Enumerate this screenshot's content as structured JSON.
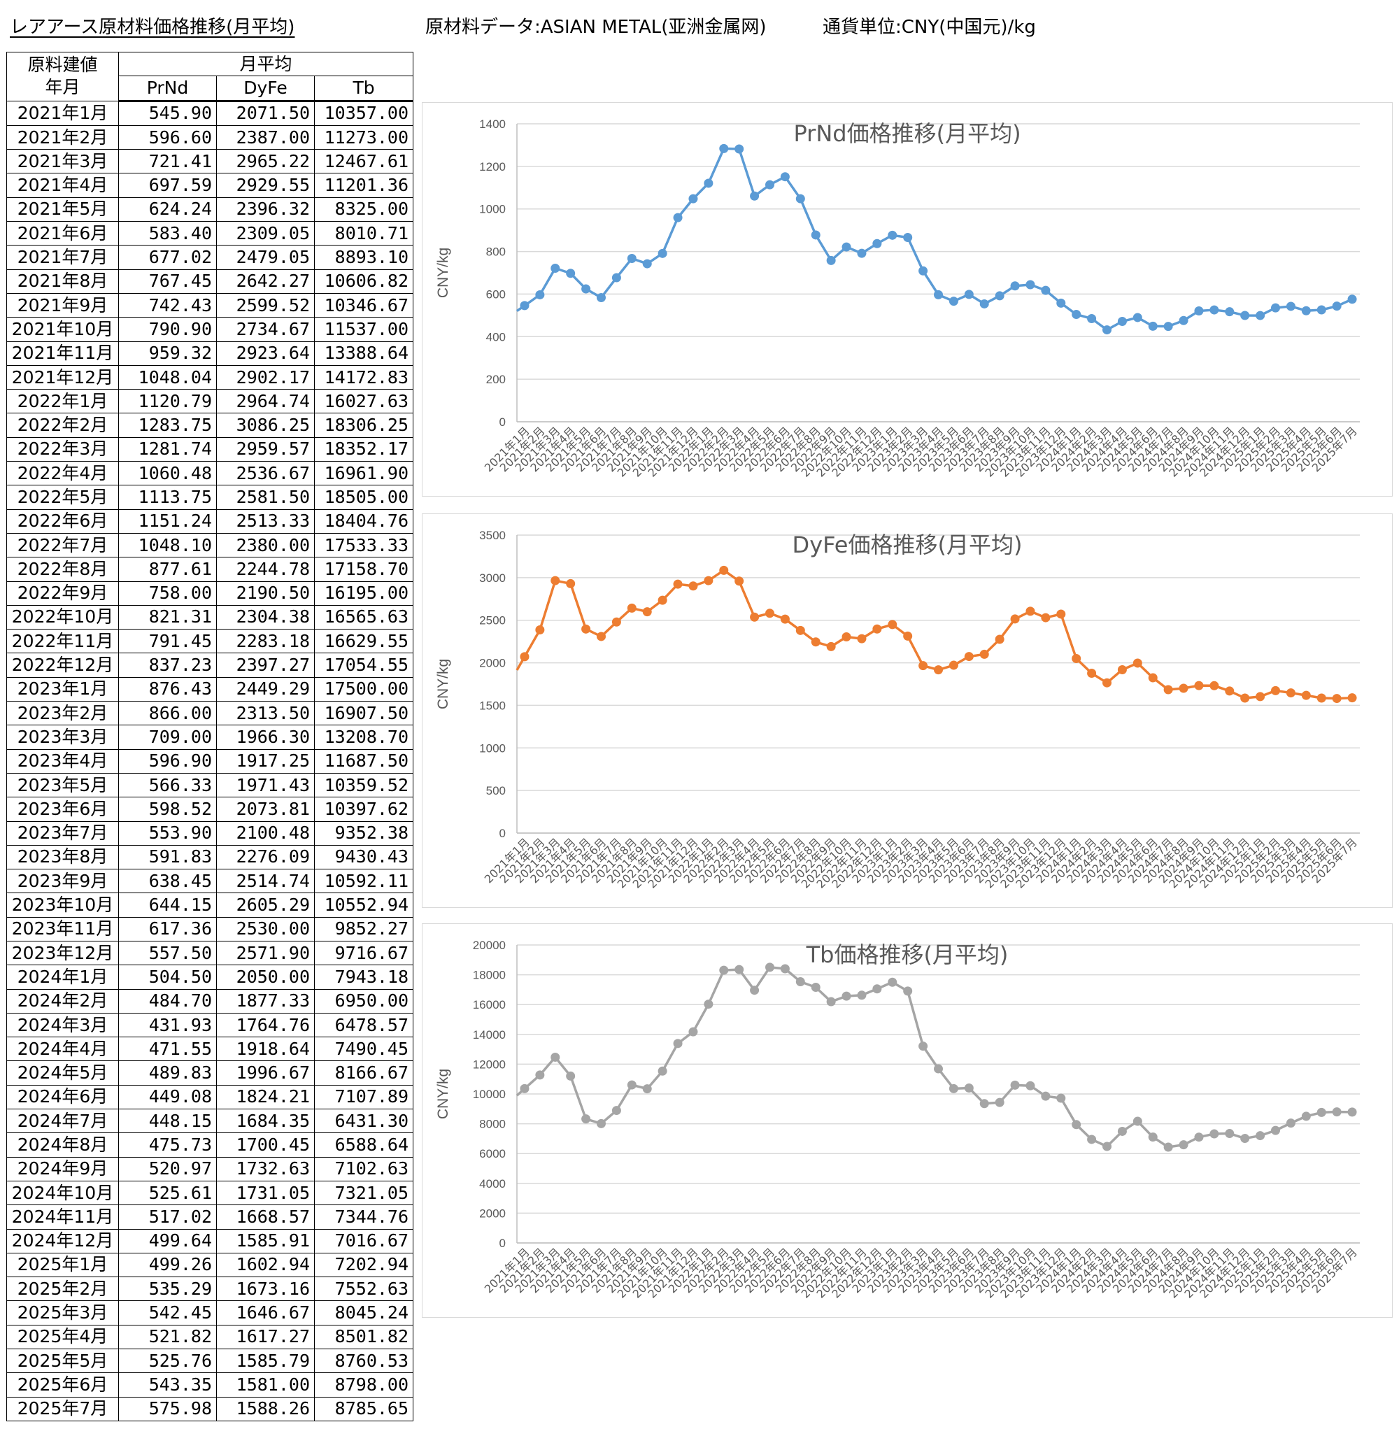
{
  "header": {
    "title": "レアアース原材料価格推移(月平均)",
    "source": "原材料データ:ASIAN METAL(亚洲金属网)",
    "currency": "通貨単位:CNY(中国元)/kg"
  },
  "table": {
    "corner_line1": "原料建値",
    "corner_line2": "年月",
    "group_header": "月平均",
    "columns": [
      "PrNd",
      "DyFe",
      "Tb"
    ],
    "rows": [
      [
        "2021年1月",
        "545.90",
        "2071.50",
        "10357.00"
      ],
      [
        "2021年2月",
        "596.60",
        "2387.00",
        "11273.00"
      ],
      [
        "2021年3月",
        "721.41",
        "2965.22",
        "12467.61"
      ],
      [
        "2021年4月",
        "697.59",
        "2929.55",
        "11201.36"
      ],
      [
        "2021年5月",
        "624.24",
        "2396.32",
        "8325.00"
      ],
      [
        "2021年6月",
        "583.40",
        "2309.05",
        "8010.71"
      ],
      [
        "2021年7月",
        "677.02",
        "2479.05",
        "8893.10"
      ],
      [
        "2021年8月",
        "767.45",
        "2642.27",
        "10606.82"
      ],
      [
        "2021年9月",
        "742.43",
        "2599.52",
        "10346.67"
      ],
      [
        "2021年10月",
        "790.90",
        "2734.67",
        "11537.00"
      ],
      [
        "2021年11月",
        "959.32",
        "2923.64",
        "13388.64"
      ],
      [
        "2021年12月",
        "1048.04",
        "2902.17",
        "14172.83"
      ],
      [
        "2022年1月",
        "1120.79",
        "2964.74",
        "16027.63"
      ],
      [
        "2022年2月",
        "1283.75",
        "3086.25",
        "18306.25"
      ],
      [
        "2022年3月",
        "1281.74",
        "2959.57",
        "18352.17"
      ],
      [
        "2022年4月",
        "1060.48",
        "2536.67",
        "16961.90"
      ],
      [
        "2022年5月",
        "1113.75",
        "2581.50",
        "18505.00"
      ],
      [
        "2022年6月",
        "1151.24",
        "2513.33",
        "18404.76"
      ],
      [
        "2022年7月",
        "1048.10",
        "2380.00",
        "17533.33"
      ],
      [
        "2022年8月",
        "877.61",
        "2244.78",
        "17158.70"
      ],
      [
        "2022年9月",
        "758.00",
        "2190.50",
        "16195.00"
      ],
      [
        "2022年10月",
        "821.31",
        "2304.38",
        "16565.63"
      ],
      [
        "2022年11月",
        "791.45",
        "2283.18",
        "16629.55"
      ],
      [
        "2022年12月",
        "837.23",
        "2397.27",
        "17054.55"
      ],
      [
        "2023年1月",
        "876.43",
        "2449.29",
        "17500.00"
      ],
      [
        "2023年2月",
        "866.00",
        "2313.50",
        "16907.50"
      ],
      [
        "2023年3月",
        "709.00",
        "1966.30",
        "13208.70"
      ],
      [
        "2023年4月",
        "596.90",
        "1917.25",
        "11687.50"
      ],
      [
        "2023年5月",
        "566.33",
        "1971.43",
        "10359.52"
      ],
      [
        "2023年6月",
        "598.52",
        "2073.81",
        "10397.62"
      ],
      [
        "2023年7月",
        "553.90",
        "2100.48",
        "9352.38"
      ],
      [
        "2023年8月",
        "591.83",
        "2276.09",
        "9430.43"
      ],
      [
        "2023年9月",
        "638.45",
        "2514.74",
        "10592.11"
      ],
      [
        "2023年10月",
        "644.15",
        "2605.29",
        "10552.94"
      ],
      [
        "2023年11月",
        "617.36",
        "2530.00",
        "9852.27"
      ],
      [
        "2023年12月",
        "557.50",
        "2571.90",
        "9716.67"
      ],
      [
        "2024年1月",
        "504.50",
        "2050.00",
        "7943.18"
      ],
      [
        "2024年2月",
        "484.70",
        "1877.33",
        "6950.00"
      ],
      [
        "2024年3月",
        "431.93",
        "1764.76",
        "6478.57"
      ],
      [
        "2024年4月",
        "471.55",
        "1918.64",
        "7490.45"
      ],
      [
        "2024年5月",
        "489.83",
        "1996.67",
        "8166.67"
      ],
      [
        "2024年6月",
        "449.08",
        "1824.21",
        "7107.89"
      ],
      [
        "2024年7月",
        "448.15",
        "1684.35",
        "6431.30"
      ],
      [
        "2024年8月",
        "475.73",
        "1700.45",
        "6588.64"
      ],
      [
        "2024年9月",
        "520.97",
        "1732.63",
        "7102.63"
      ],
      [
        "2024年10月",
        "525.61",
        "1731.05",
        "7321.05"
      ],
      [
        "2024年11月",
        "517.02",
        "1668.57",
        "7344.76"
      ],
      [
        "2024年12月",
        "499.64",
        "1585.91",
        "7016.67"
      ],
      [
        "2025年1月",
        "499.26",
        "1602.94",
        "7202.94"
      ],
      [
        "2025年2月",
        "535.29",
        "1673.16",
        "7552.63"
      ],
      [
        "2025年3月",
        "542.45",
        "1646.67",
        "8045.24"
      ],
      [
        "2025年4月",
        "521.82",
        "1617.27",
        "8501.82"
      ],
      [
        "2025年5月",
        "525.76",
        "1585.79",
        "8760.53"
      ],
      [
        "2025年6月",
        "543.35",
        "1581.00",
        "8798.00"
      ],
      [
        "2025年7月",
        "575.98",
        "1588.26",
        "8785.65"
      ]
    ]
  },
  "chart_data": [
    {
      "type": "line",
      "title": "PrNd価格推移(月平均)",
      "ylabel": "CNY/kg",
      "xlabel": "",
      "ylim": [
        0,
        1400
      ],
      "yticks": [
        0,
        200,
        400,
        600,
        800,
        1000,
        1200,
        1400
      ],
      "color": "#5b9bd5",
      "grid": true,
      "legend": "none",
      "x": [
        "2021年1月",
        "2021年2月",
        "2021年3月",
        "2021年4月",
        "2021年5月",
        "2021年6月",
        "2021年7月",
        "2021年8月",
        "2021年9月",
        "2021年10月",
        "2021年11月",
        "2021年12月",
        "2022年1月",
        "2022年2月",
        "2022年3月",
        "2022年4月",
        "2022年5月",
        "2022年6月",
        "2022年7月",
        "2022年8月",
        "2022年9月",
        "2022年10月",
        "2022年11月",
        "2022年12月",
        "2023年1月",
        "2023年2月",
        "2023年3月",
        "2023年4月",
        "2023年5月",
        "2023年6月",
        "2023年7月",
        "2023年8月",
        "2023年9月",
        "2023年10月",
        "2023年11月",
        "2023年12月",
        "2024年1月",
        "2024年2月",
        "2024年3月",
        "2024年4月",
        "2024年5月",
        "2024年6月",
        "2024年7月",
        "2024年8月",
        "2024年9月",
        "2024年10月",
        "2024年11月",
        "2024年12月",
        "2025年1月",
        "2025年2月",
        "2025年3月",
        "2025年4月",
        "2025年5月",
        "2025年6月",
        "2025年7月"
      ],
      "values": [
        545.9,
        596.6,
        721.41,
        697.59,
        624.24,
        583.4,
        677.02,
        767.45,
        742.43,
        790.9,
        959.32,
        1048.04,
        1120.79,
        1283.75,
        1281.74,
        1060.48,
        1113.75,
        1151.24,
        1048.1,
        877.61,
        758.0,
        821.31,
        791.45,
        837.23,
        876.43,
        866.0,
        709.0,
        596.9,
        566.33,
        598.52,
        553.9,
        591.83,
        638.45,
        644.15,
        617.36,
        557.5,
        504.5,
        484.7,
        431.93,
        471.55,
        489.83,
        449.08,
        448.15,
        475.73,
        520.97,
        525.61,
        517.02,
        499.64,
        499.26,
        535.29,
        542.45,
        521.82,
        525.76,
        543.35,
        575.98
      ]
    },
    {
      "type": "line",
      "title": "DyFe価格推移(月平均)",
      "ylabel": "CNY/kg",
      "xlabel": "",
      "ylim": [
        0,
        3500
      ],
      "yticks": [
        0,
        500,
        1000,
        1500,
        2000,
        2500,
        3000,
        3500
      ],
      "color": "#ed7d31",
      "grid": true,
      "legend": "none",
      "x": [
        "2021年1月",
        "2021年2月",
        "2021年3月",
        "2021年4月",
        "2021年5月",
        "2021年6月",
        "2021年7月",
        "2021年8月",
        "2021年9月",
        "2021年10月",
        "2021年11月",
        "2021年12月",
        "2022年1月",
        "2022年2月",
        "2022年3月",
        "2022年4月",
        "2022年5月",
        "2022年6月",
        "2022年7月",
        "2022年8月",
        "2022年9月",
        "2022年10月",
        "2022年11月",
        "2022年12月",
        "2023年1月",
        "2023年2月",
        "2023年3月",
        "2023年4月",
        "2023年5月",
        "2023年6月",
        "2023年7月",
        "2023年8月",
        "2023年9月",
        "2023年10月",
        "2023年11月",
        "2023年12月",
        "2024年1月",
        "2024年2月",
        "2024年3月",
        "2024年4月",
        "2024年5月",
        "2024年6月",
        "2024年7月",
        "2024年8月",
        "2024年9月",
        "2024年10月",
        "2024年11月",
        "2024年12月",
        "2025年1月",
        "2025年2月",
        "2025年3月",
        "2025年4月",
        "2025年5月",
        "2025年6月",
        "2025年7月"
      ],
      "values": [
        2071.5,
        2387.0,
        2965.22,
        2929.55,
        2396.32,
        2309.05,
        2479.05,
        2642.27,
        2599.52,
        2734.67,
        2923.64,
        2902.17,
        2964.74,
        3086.25,
        2959.57,
        2536.67,
        2581.5,
        2513.33,
        2380.0,
        2244.78,
        2190.5,
        2304.38,
        2283.18,
        2397.27,
        2449.29,
        2313.5,
        1966.3,
        1917.25,
        1971.43,
        2073.81,
        2100.48,
        2276.09,
        2514.74,
        2605.29,
        2530.0,
        2571.9,
        2050.0,
        1877.33,
        1764.76,
        1918.64,
        1996.67,
        1824.21,
        1684.35,
        1700.45,
        1732.63,
        1731.05,
        1668.57,
        1585.91,
        1602.94,
        1673.16,
        1646.67,
        1617.27,
        1585.79,
        1581.0,
        1588.26
      ]
    },
    {
      "type": "line",
      "title": "Tb価格推移(月平均)",
      "ylabel": "CNY/kg",
      "xlabel": "",
      "ylim": [
        0,
        20000
      ],
      "yticks": [
        0,
        2000,
        4000,
        6000,
        8000,
        10000,
        12000,
        14000,
        16000,
        18000,
        20000
      ],
      "color": "#a5a5a5",
      "grid": true,
      "legend": "none",
      "x": [
        "2021年1月",
        "2021年2月",
        "2021年3月",
        "2021年4月",
        "2021年5月",
        "2021年6月",
        "2021年7月",
        "2021年8月",
        "2021年9月",
        "2021年10月",
        "2021年11月",
        "2021年12月",
        "2022年1月",
        "2022年2月",
        "2022年3月",
        "2022年4月",
        "2022年5月",
        "2022年6月",
        "2022年7月",
        "2022年8月",
        "2022年9月",
        "2022年10月",
        "2022年11月",
        "2022年12月",
        "2023年1月",
        "2023年2月",
        "2023年3月",
        "2023年4月",
        "2023年5月",
        "2023年6月",
        "2023年7月",
        "2023年8月",
        "2023年9月",
        "2023年10月",
        "2023年11月",
        "2023年12月",
        "2024年1月",
        "2024年2月",
        "2024年3月",
        "2024年4月",
        "2024年5月",
        "2024年6月",
        "2024年7月",
        "2024年8月",
        "2024年9月",
        "2024年10月",
        "2024年11月",
        "2024年12月",
        "2025年1月",
        "2025年2月",
        "2025年3月",
        "2025年4月",
        "2025年5月",
        "2025年6月",
        "2025年7月"
      ],
      "values": [
        10357.0,
        11273.0,
        12467.61,
        11201.36,
        8325.0,
        8010.71,
        8893.1,
        10606.82,
        10346.67,
        11537.0,
        13388.64,
        14172.83,
        16027.63,
        18306.25,
        18352.17,
        16961.9,
        18505.0,
        18404.76,
        17533.33,
        17158.7,
        16195.0,
        16565.63,
        16629.55,
        17054.55,
        17500.0,
        16907.5,
        13208.7,
        11687.5,
        10359.52,
        10397.62,
        9352.38,
        9430.43,
        10592.11,
        10552.94,
        9852.27,
        9716.67,
        7943.18,
        6950.0,
        6478.57,
        7490.45,
        8166.67,
        7107.89,
        6431.3,
        6588.64,
        7102.63,
        7321.05,
        7344.76,
        7016.67,
        7202.94,
        7552.63,
        8045.24,
        8501.82,
        8760.53,
        8798.0,
        8785.65
      ]
    }
  ]
}
